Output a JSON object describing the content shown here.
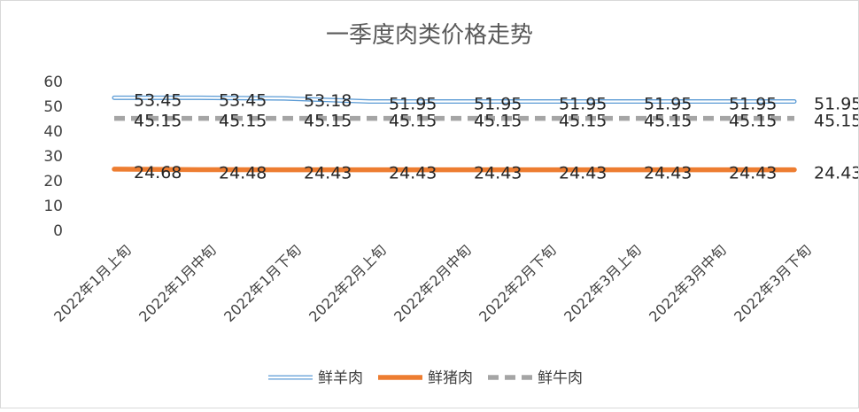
{
  "chart_data": {
    "type": "line",
    "title": "一季度肉类价格走势",
    "categories": [
      "2022年1月上旬",
      "2022年1月中旬",
      "2022年1月下旬",
      "2022年2月上旬",
      "2022年2月中旬",
      "2022年2月下旬",
      "2022年3月上旬",
      "2022年3月中旬",
      "2022年3月下旬"
    ],
    "ylim": [
      0,
      60
    ],
    "yticks": [
      0,
      10,
      20,
      30,
      40,
      50,
      60
    ],
    "grid": false,
    "legend_position": "bottom",
    "series": [
      {
        "name": "鲜羊肉",
        "values": [
          53.45,
          53.45,
          53.18,
          51.95,
          51.95,
          51.95,
          51.95,
          51.95,
          51.95
        ],
        "labels": [
          "53.45",
          "53.45",
          "53.18",
          "51.95",
          "51.95",
          "51.95",
          "51.95",
          "51.95",
          "51.95"
        ],
        "color": "#5b9bd5",
        "style": "double"
      },
      {
        "name": "鲜猪肉",
        "values": [
          24.68,
          24.48,
          24.43,
          24.43,
          24.43,
          24.43,
          24.43,
          24.43,
          24.43
        ],
        "labels": [
          "24.68",
          "24.48",
          "24.43",
          "24.43",
          "24.43",
          "24.43",
          "24.43",
          "24.43",
          "24.43"
        ],
        "color": "#ed7d31",
        "style": "solid"
      },
      {
        "name": "鲜牛肉",
        "values": [
          45.15,
          45.15,
          45.15,
          45.15,
          45.15,
          45.15,
          45.15,
          45.15,
          45.15
        ],
        "labels": [
          "45.15",
          "45.15",
          "45.15",
          "45.15",
          "45.15",
          "45.15",
          "45.15",
          "45.15",
          "45.15"
        ],
        "color": "#a5a5a5",
        "style": "dashed"
      }
    ]
  }
}
